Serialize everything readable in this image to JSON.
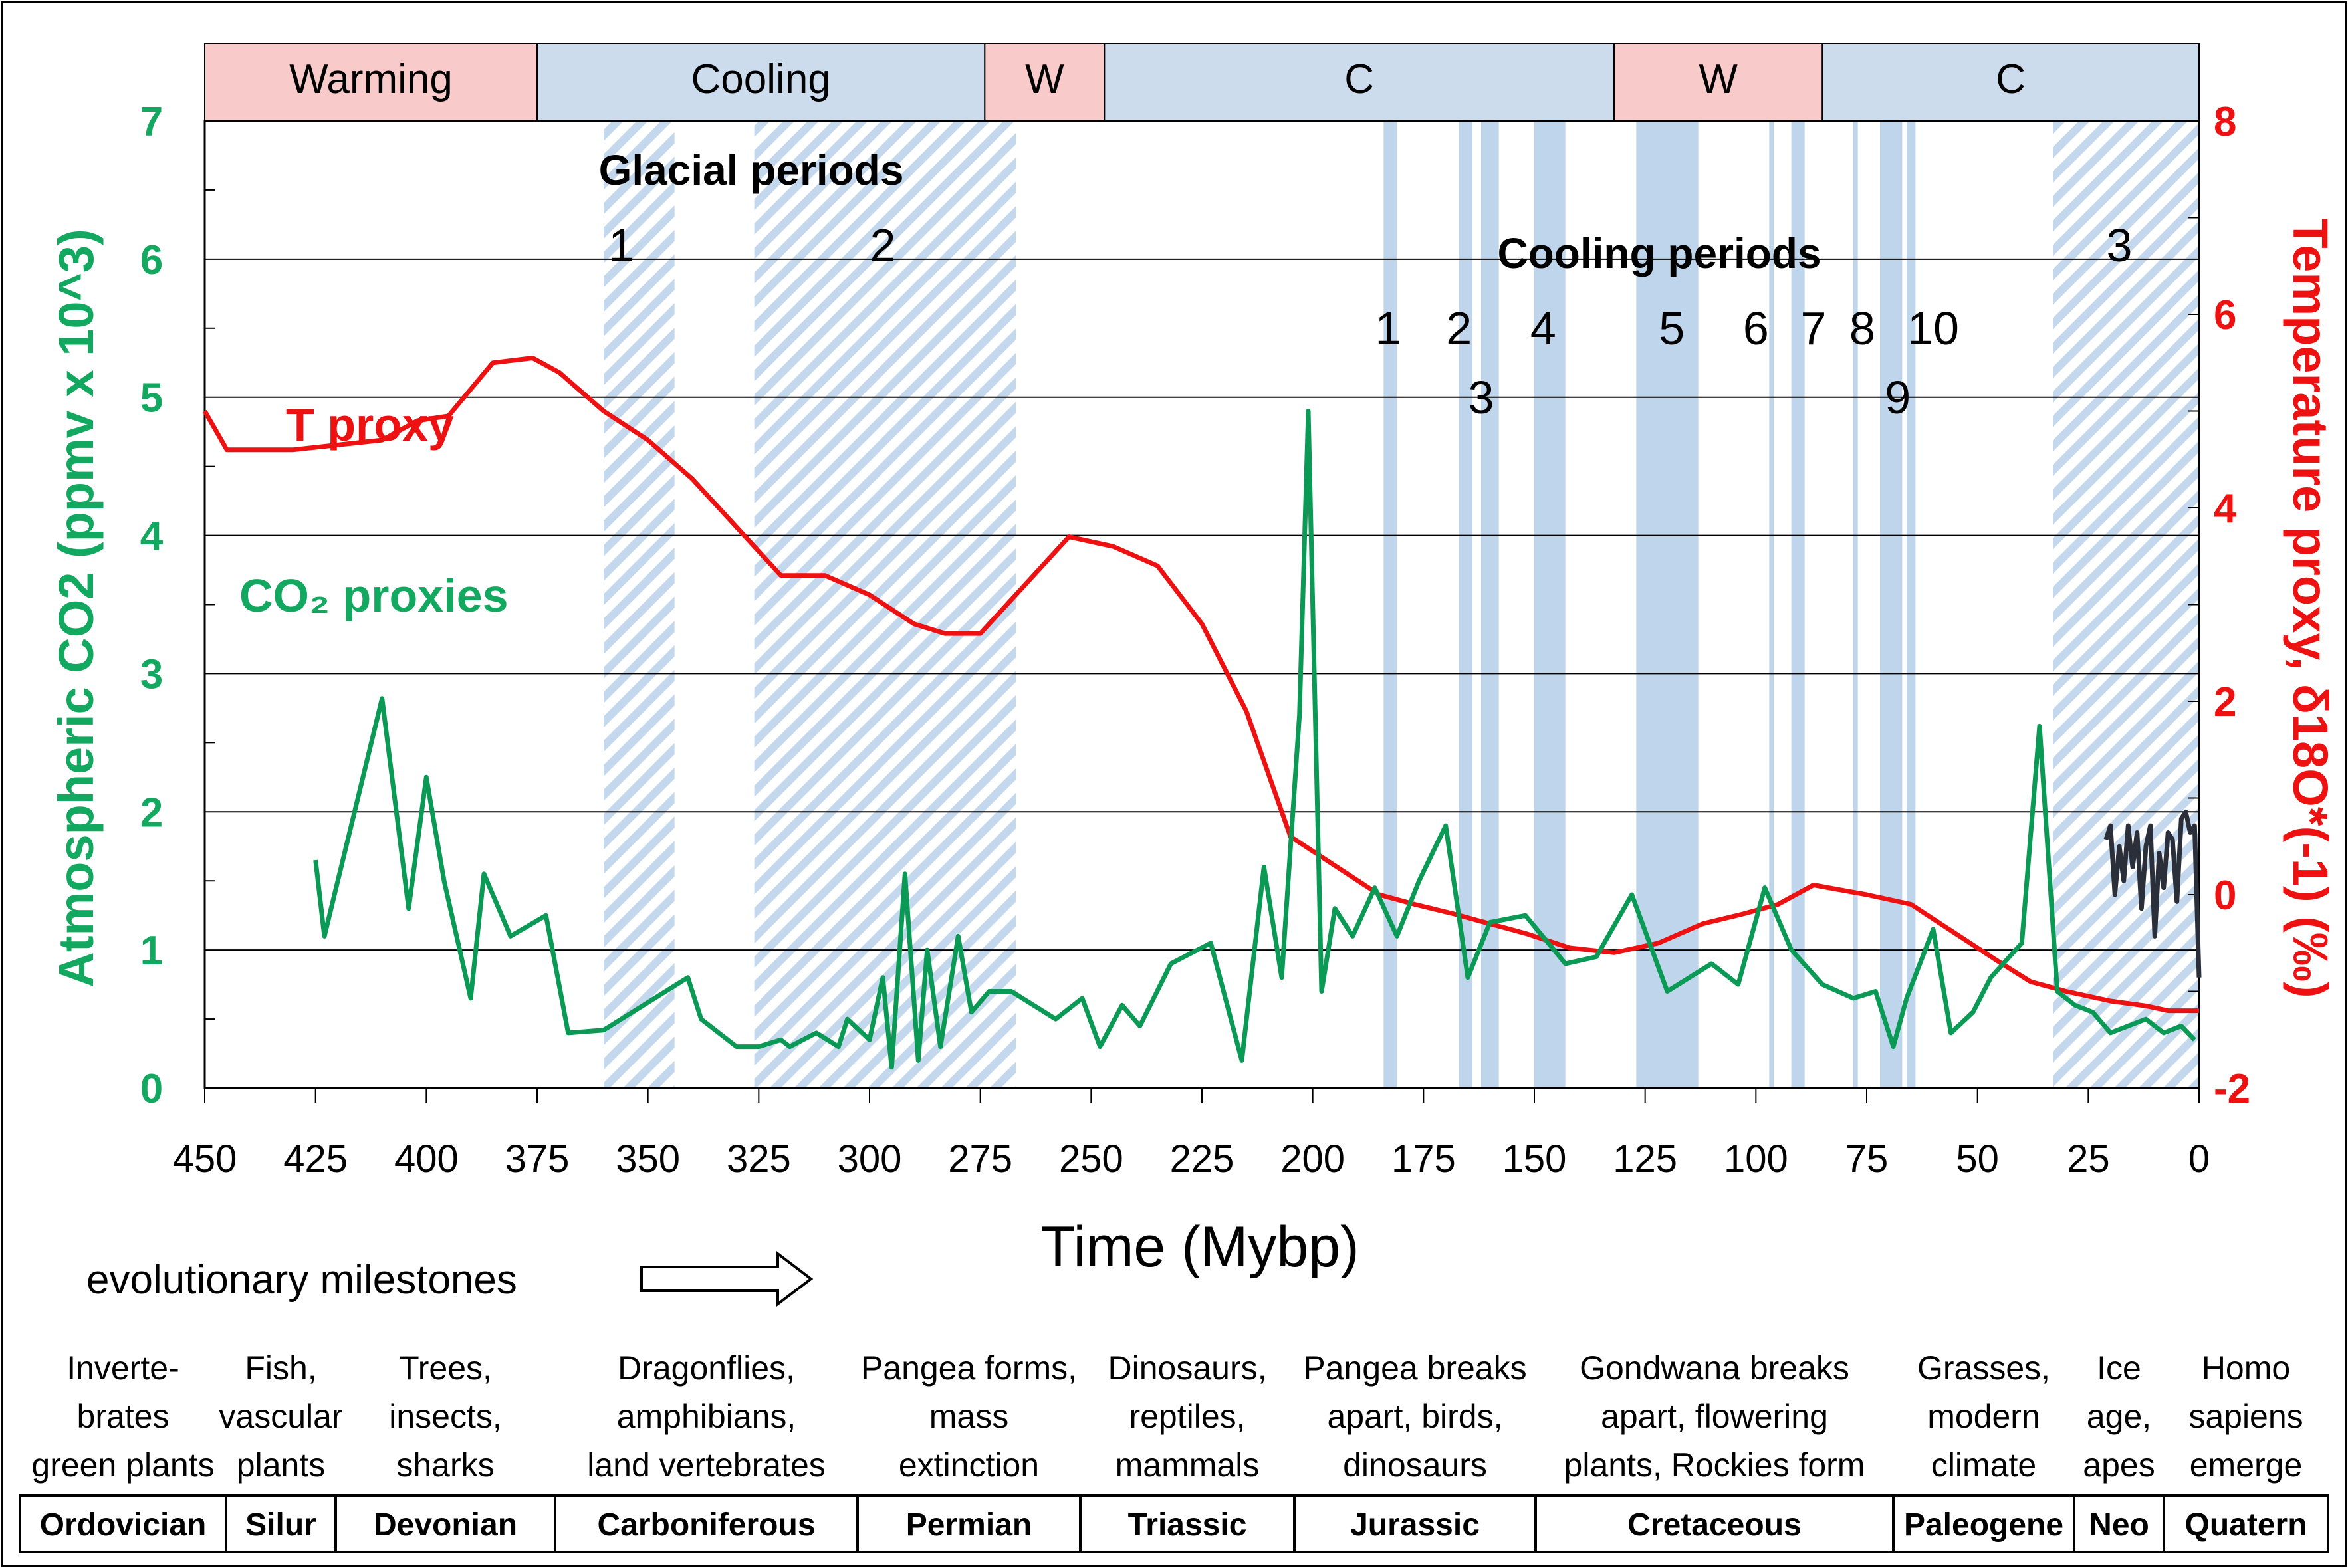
{
  "chart_data": {
    "type": "line",
    "xlabel": "Time (Mybp)",
    "ylabel_left": "Atmospheric CO2 (ppmv x 10^3)",
    "ylabel_right": "Temperature proxy, δ18O*(-1) (‰)",
    "xlim": [
      450,
      0
    ],
    "ylim_left": [
      0,
      7
    ],
    "ylim_right": [
      -2,
      8
    ],
    "x_ticks": [
      "450",
      "425",
      "400",
      "375",
      "350",
      "325",
      "300",
      "275",
      "250",
      "225",
      "200",
      "175",
      "150",
      "125",
      "100",
      "75",
      "50",
      "25",
      "0"
    ],
    "y_ticks_left": [
      "0",
      "1",
      "2",
      "3",
      "4",
      "5",
      "6",
      "7"
    ],
    "y_ticks_right": [
      "-2",
      "0",
      "2",
      "4",
      "6",
      "8"
    ],
    "grid": true,
    "colors": {
      "co2": "#0a9a55",
      "co2_label": "#13a85f",
      "temperature": "#ee1111",
      "recent": "#2a2f3a",
      "warming_band": "#f8caca",
      "cooling_band": "#cddcec",
      "period_shade": "#b7d0ea"
    },
    "climate_bands": [
      {
        "label": "Warming",
        "kind": "warm",
        "from": 450,
        "to": 375
      },
      {
        "label": "Cooling",
        "kind": "cool",
        "from": 375,
        "to": 274
      },
      {
        "label": "W",
        "kind": "warm",
        "from": 274,
        "to": 247
      },
      {
        "label": "C",
        "kind": "cool",
        "from": 247,
        "to": 132
      },
      {
        "label": "W",
        "kind": "warm",
        "from": 132,
        "to": 85
      },
      {
        "label": "C",
        "kind": "cool",
        "from": 85,
        "to": 0
      }
    ],
    "glacial_periods": {
      "title": "Glacial periods",
      "items": [
        {
          "label": "1",
          "from": 360,
          "to": 344,
          "label_x": 356
        },
        {
          "label": "2",
          "from": 326,
          "to": 267,
          "label_x": 297
        },
        {
          "label": "3",
          "from": 33,
          "to": 0,
          "label_x": 18
        }
      ]
    },
    "cooling_periods": {
      "title": "Cooling periods",
      "items": [
        {
          "label": "1",
          "from": 184,
          "to": 181,
          "label_x": 183,
          "row": 1
        },
        {
          "label": "2",
          "from": 167,
          "to": 164,
          "label_x": 167,
          "row": 1
        },
        {
          "label": "3",
          "from": 162,
          "to": 158,
          "label_x": 162,
          "row": 2
        },
        {
          "label": "4",
          "from": 150,
          "to": 143,
          "label_x": 148,
          "row": 1
        },
        {
          "label": "5",
          "from": 127,
          "to": 113,
          "label_x": 119,
          "row": 1
        },
        {
          "label": "6",
          "from": 97,
          "to": 96,
          "label_x": 100,
          "row": 1
        },
        {
          "label": "7",
          "from": 92,
          "to": 89,
          "label_x": 87,
          "row": 1
        },
        {
          "label": "8",
          "from": 78,
          "to": 77,
          "label_x": 76,
          "row": 1
        },
        {
          "label": "9",
          "from": 72,
          "to": 67,
          "label_x": 68,
          "row": 2
        },
        {
          "label": "10",
          "from": 66,
          "to": 64,
          "label_x": 60,
          "row": 1
        }
      ]
    },
    "series": [
      {
        "name": "T proxy",
        "axis": "right",
        "x": [
          450,
          445,
          440,
          430,
          420,
          410,
          402,
          395,
          385,
          376,
          370,
          360,
          350,
          340,
          330,
          320,
          310,
          300,
          290,
          283,
          275,
          265,
          255,
          245,
          235,
          225,
          215,
          205,
          195,
          185,
          177,
          168,
          160,
          152,
          142,
          132,
          122,
          112,
          103,
          95,
          87,
          75,
          65,
          55,
          45,
          38,
          30,
          20,
          12,
          7,
          3,
          0
        ],
        "values": [
          5.0,
          4.6,
          4.6,
          4.6,
          4.65,
          4.7,
          4.9,
          4.95,
          5.5,
          5.55,
          5.4,
          5.0,
          4.7,
          4.3,
          3.8,
          3.3,
          3.3,
          3.1,
          2.8,
          2.7,
          2.7,
          3.2,
          3.7,
          3.6,
          3.4,
          2.8,
          1.9,
          0.6,
          0.3,
          0.0,
          -0.1,
          -0.2,
          -0.3,
          -0.4,
          -0.55,
          -0.6,
          -0.5,
          -0.3,
          -0.2,
          -0.1,
          0.1,
          0.0,
          -0.1,
          -0.4,
          -0.7,
          -0.9,
          -1.0,
          -1.1,
          -1.15,
          -1.2,
          -1.2,
          -1.2
        ]
      },
      {
        "name": "CO2 proxies",
        "axis": "left",
        "x": [
          425,
          423,
          410,
          404,
          400,
          396,
          390,
          387,
          381,
          373,
          368,
          360,
          341,
          338,
          330,
          325,
          320,
          318,
          312,
          307,
          305,
          300,
          297,
          295,
          292,
          289,
          287,
          284,
          280,
          277,
          273,
          268,
          258,
          252,
          248,
          243,
          239,
          232,
          223,
          216,
          211,
          207,
          203,
          201,
          198,
          195,
          191,
          186,
          181,
          176,
          170,
          165,
          160,
          152,
          143,
          136,
          128,
          120,
          115,
          110,
          104,
          98,
          92,
          85,
          78,
          73,
          69,
          66,
          60,
          56,
          51,
          47,
          40,
          36,
          32,
          28,
          24,
          20,
          16,
          12,
          8,
          4,
          1
        ],
        "values": [
          1.65,
          1.1,
          2.82,
          1.3,
          2.25,
          1.5,
          0.65,
          1.55,
          1.1,
          1.25,
          0.4,
          0.42,
          0.8,
          0.5,
          0.3,
          0.3,
          0.35,
          0.3,
          0.4,
          0.3,
          0.5,
          0.35,
          0.8,
          0.15,
          1.55,
          0.2,
          1.0,
          0.3,
          1.1,
          0.55,
          0.7,
          0.7,
          0.5,
          0.65,
          0.3,
          0.6,
          0.45,
          0.9,
          1.05,
          0.2,
          1.6,
          0.8,
          2.7,
          4.9,
          0.7,
          1.3,
          1.1,
          1.45,
          1.1,
          1.5,
          1.9,
          0.8,
          1.2,
          1.25,
          0.9,
          0.95,
          1.4,
          0.7,
          0.8,
          0.9,
          0.75,
          1.45,
          1.0,
          0.75,
          0.65,
          0.7,
          0.3,
          0.65,
          1.15,
          0.4,
          0.55,
          0.8,
          1.05,
          2.62,
          0.7,
          0.6,
          0.55,
          0.4,
          0.45,
          0.5,
          0.4,
          0.45,
          0.35
        ]
      },
      {
        "name": "",
        "axis": "left",
        "x": [
          21,
          20,
          19,
          18,
          17,
          16,
          15,
          14,
          13,
          12,
          11,
          10,
          9,
          8,
          7,
          6,
          5,
          4,
          3,
          2,
          1,
          0
        ],
        "values": [
          1.8,
          1.9,
          1.4,
          1.75,
          1.5,
          1.9,
          1.6,
          1.85,
          1.3,
          1.75,
          1.9,
          1.1,
          1.7,
          1.45,
          1.85,
          1.8,
          1.35,
          1.95,
          2.0,
          1.85,
          1.9,
          0.8
        ]
      }
    ],
    "labels": {
      "t_proxy": "T proxy",
      "co2_proxies": "CO₂ proxies"
    },
    "milestones_header": "evolutionary milestones",
    "milestones": [
      {
        "period": "Ordovician",
        "lines": [
          "Inverte-",
          "brates",
          "green plants"
        ]
      },
      {
        "period": "Silur",
        "lines": [
          "Fish,",
          "vascular",
          "plants"
        ]
      },
      {
        "period": "Devonian",
        "lines": [
          "Trees,",
          "insects,",
          "sharks"
        ]
      },
      {
        "period": "Carboniferous",
        "lines": [
          "Dragonflies,",
          "amphibians,",
          "land vertebrates"
        ]
      },
      {
        "period": "Permian",
        "lines": [
          "Pangea forms,",
          "mass",
          "extinction"
        ]
      },
      {
        "period": "Triassic",
        "lines": [
          "Dinosaurs,",
          "reptiles,",
          "mammals"
        ]
      },
      {
        "period": "Jurassic",
        "lines": [
          "Pangea breaks",
          "apart, birds,",
          "dinosaurs"
        ]
      },
      {
        "period": "Cretaceous",
        "lines": [
          "Gondwana  breaks",
          "apart, flowering",
          "plants, Rockies form"
        ]
      },
      {
        "period": "Paleogene",
        "lines": [
          "Grasses,",
          "modern",
          "climate"
        ]
      },
      {
        "period": "Neo",
        "lines": [
          "Ice",
          "age,",
          "apes"
        ]
      },
      {
        "period": "Quatern",
        "lines": [
          "Homo",
          "sapiens",
          "emerge"
        ]
      }
    ]
  }
}
